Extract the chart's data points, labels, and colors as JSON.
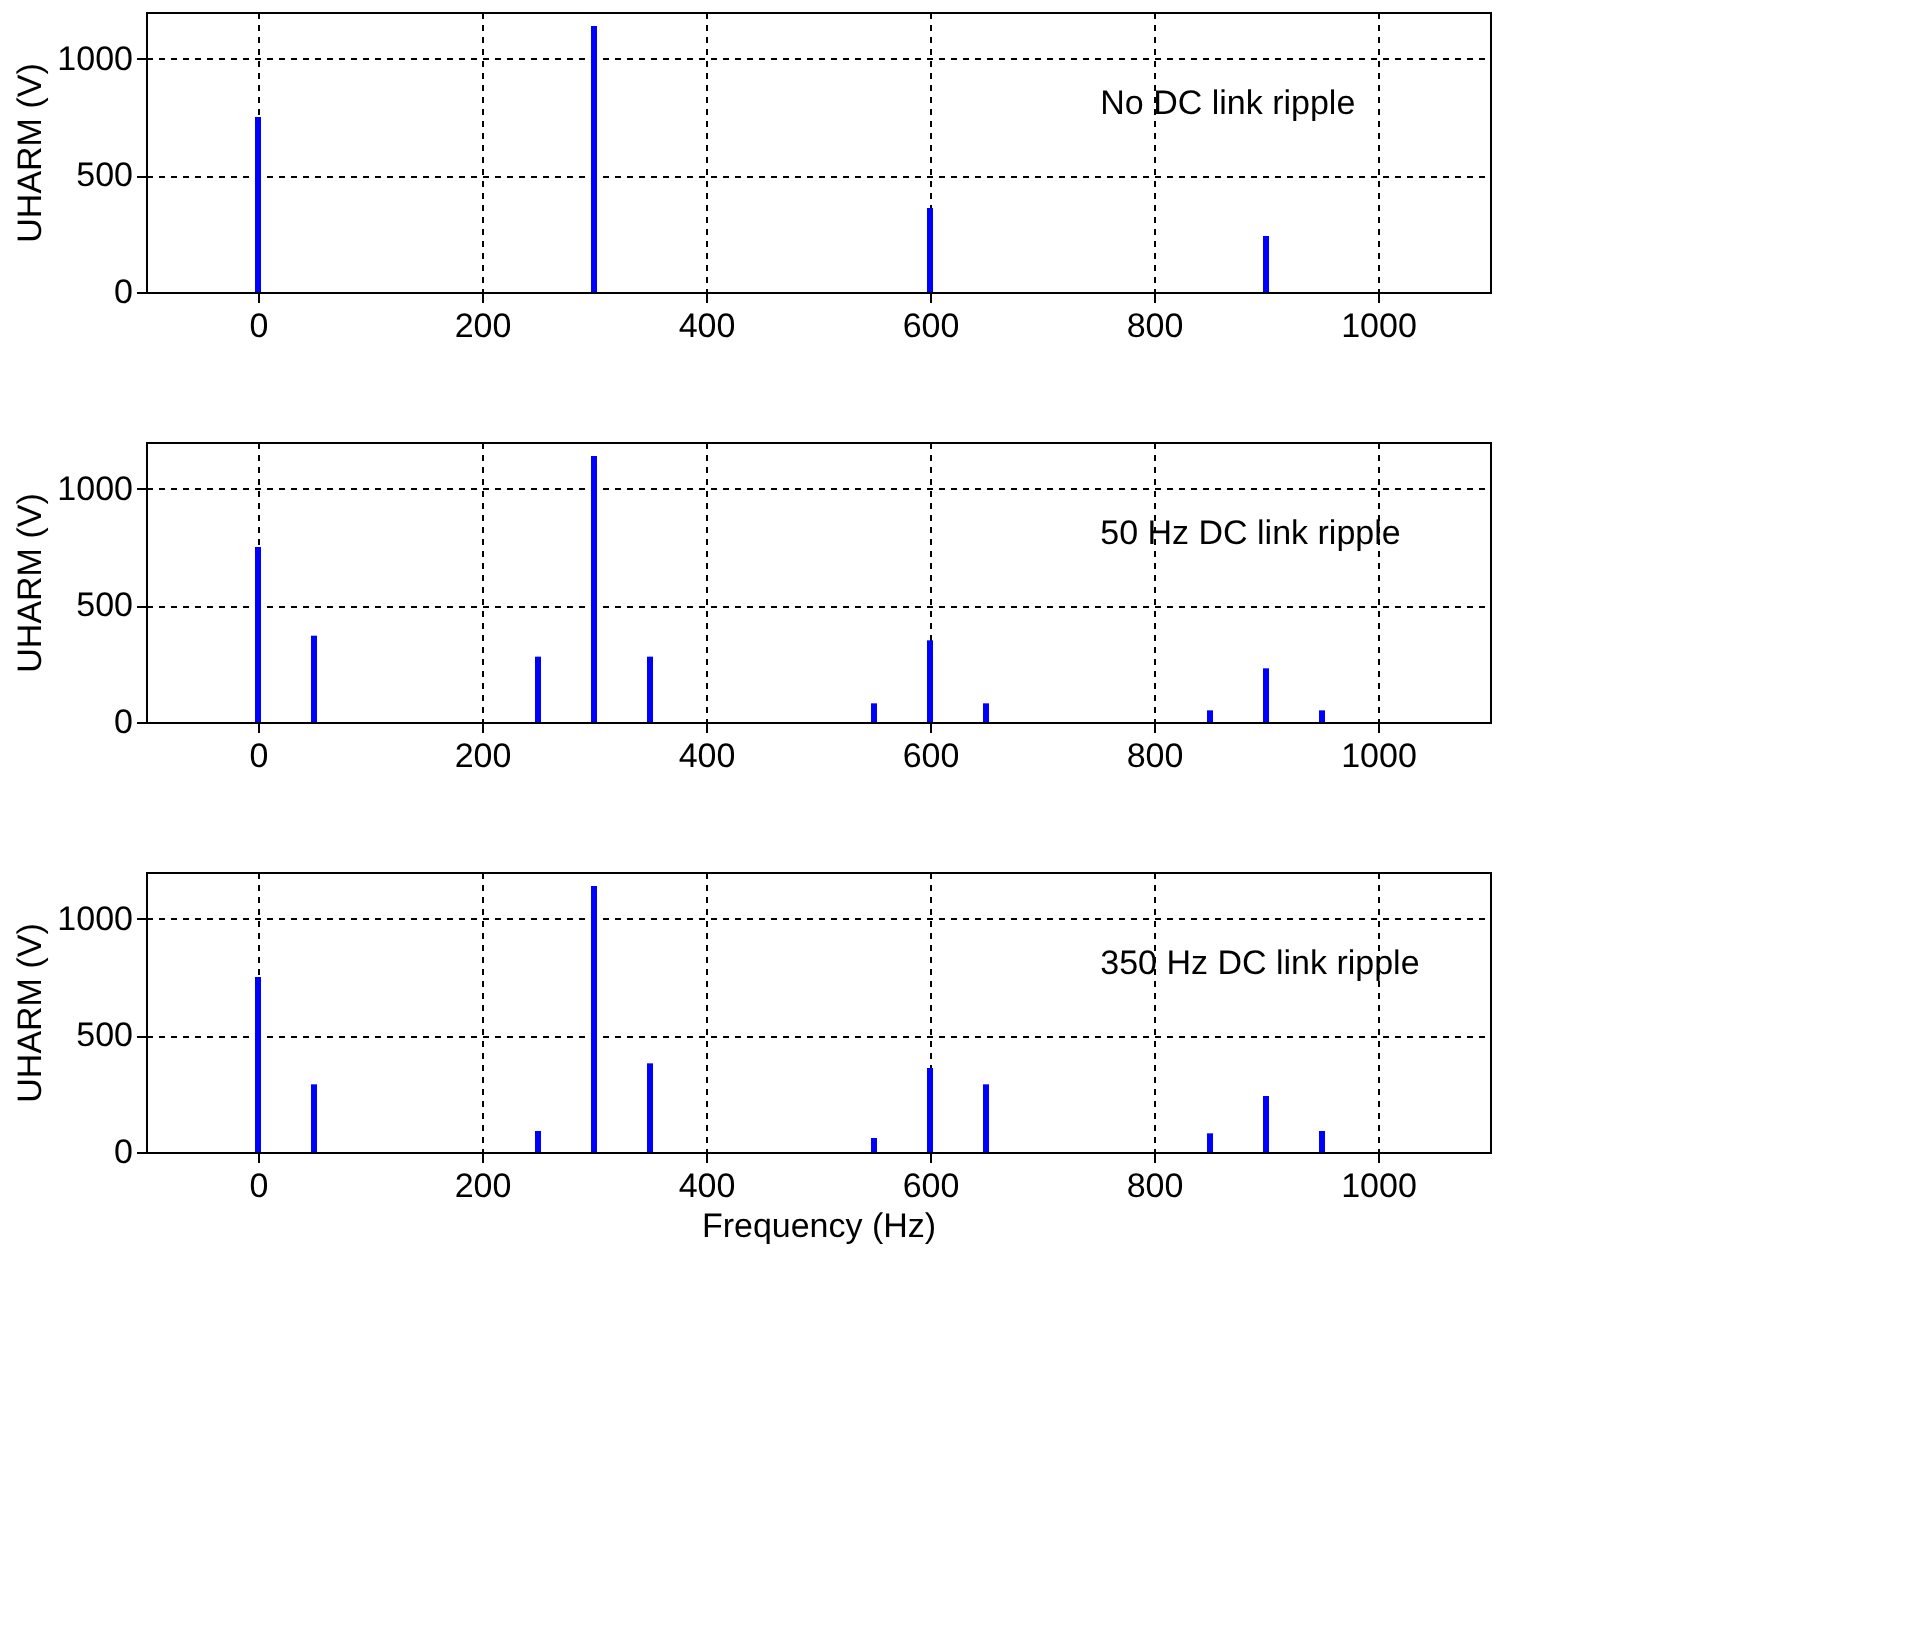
{
  "chart_data": [
    {
      "type": "bar",
      "ylabel": "UHARM (V)",
      "annotations": [
        "No DC link ripple"
      ],
      "xlim": [
        -100,
        1100
      ],
      "xticks": [
        0,
        200,
        400,
        600,
        800,
        1000
      ],
      "ylim": [
        0,
        1200
      ],
      "yticks": [
        0,
        500,
        1000
      ],
      "grid": true,
      "series": [
        {
          "color": "#0000ff",
          "x": [
            0,
            300,
            600,
            900
          ],
          "values": [
            750,
            1140,
            360,
            240
          ]
        }
      ]
    },
    {
      "type": "bar",
      "ylabel": "UHARM (V)",
      "annotations": [
        "50 Hz DC link ripple"
      ],
      "xlim": [
        -100,
        1100
      ],
      "xticks": [
        0,
        200,
        400,
        600,
        800,
        1000
      ],
      "ylim": [
        0,
        1200
      ],
      "yticks": [
        0,
        500,
        1000
      ],
      "grid": true,
      "series": [
        {
          "color": "#0000ff",
          "x": [
            0,
            50,
            250,
            300,
            350,
            550,
            600,
            650,
            850,
            900,
            950
          ],
          "values": [
            750,
            370,
            280,
            1140,
            280,
            80,
            350,
            80,
            50,
            230,
            50
          ]
        }
      ]
    },
    {
      "type": "bar",
      "xlabel": "Frequency (Hz)",
      "ylabel": "UHARM (V)",
      "annotations": [
        "350 Hz DC link ripple"
      ],
      "xlim": [
        -100,
        1100
      ],
      "xticks": [
        0,
        200,
        400,
        600,
        800,
        1000
      ],
      "ylim": [
        0,
        1200
      ],
      "yticks": [
        0,
        500,
        1000
      ],
      "grid": true,
      "series": [
        {
          "color": "#0000ff",
          "x": [
            0,
            50,
            250,
            300,
            350,
            550,
            600,
            650,
            850,
            900,
            950
          ],
          "values": [
            750,
            290,
            90,
            1140,
            380,
            60,
            360,
            290,
            80,
            240,
            90
          ]
        }
      ]
    }
  ]
}
